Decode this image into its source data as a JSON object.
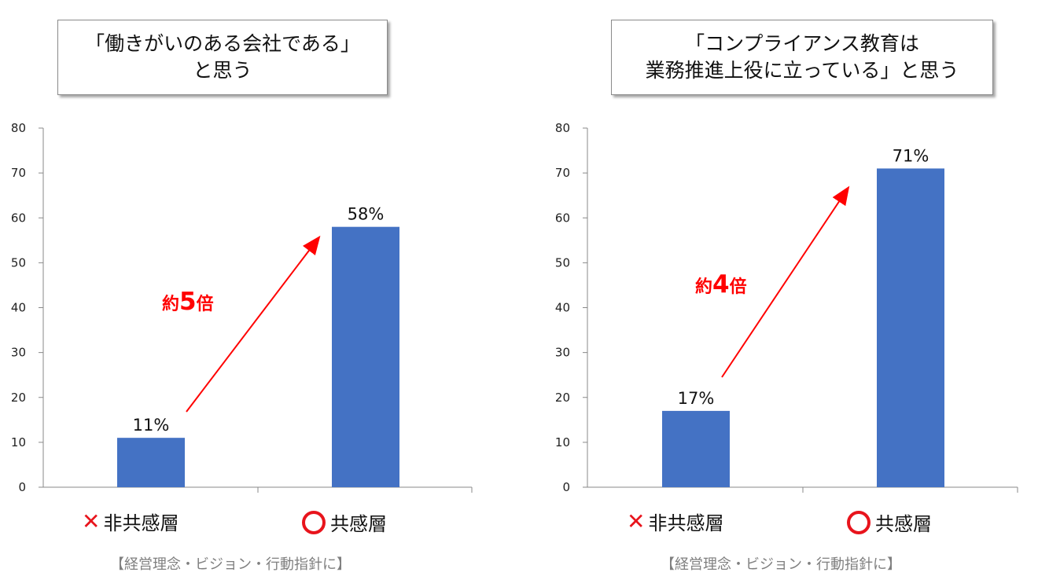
{
  "chart_data": [
    {
      "type": "bar",
      "title_lines": [
        "「働きがいのある会社である」",
        "と思う"
      ],
      "categories": [
        "非共感層",
        "共感層"
      ],
      "category_marks": [
        "cross",
        "circle"
      ],
      "values": [
        11,
        58
      ],
      "value_labels": [
        "11%",
        "58%"
      ],
      "ylim": [
        0,
        80
      ],
      "yticks": [
        0,
        10,
        20,
        30,
        40,
        50,
        60,
        70,
        80
      ],
      "bar_color": "#4472c4",
      "annotation": {
        "prefix": "約",
        "number": "5",
        "suffix": "倍",
        "color": "#ff0000"
      },
      "source": "【経営理念・ビジョン・行動指針に】"
    },
    {
      "type": "bar",
      "title_lines": [
        "「コンプライアンス教育は",
        "業務推進上役に立っている」と思う"
      ],
      "categories": [
        "非共感層",
        "共感層"
      ],
      "category_marks": [
        "cross",
        "circle"
      ],
      "values": [
        17,
        71
      ],
      "value_labels": [
        "17%",
        "71%"
      ],
      "ylim": [
        0,
        80
      ],
      "yticks": [
        0,
        10,
        20,
        30,
        40,
        50,
        60,
        70,
        80
      ],
      "bar_color": "#4472c4",
      "annotation": {
        "prefix": "約",
        "number": "4",
        "suffix": "倍",
        "color": "#ff0000"
      },
      "source": "【経営理念・ビジョン・行動指針に】"
    }
  ],
  "icons": {
    "cross": "cross-mark-icon",
    "circle": "circle-mark-icon"
  }
}
